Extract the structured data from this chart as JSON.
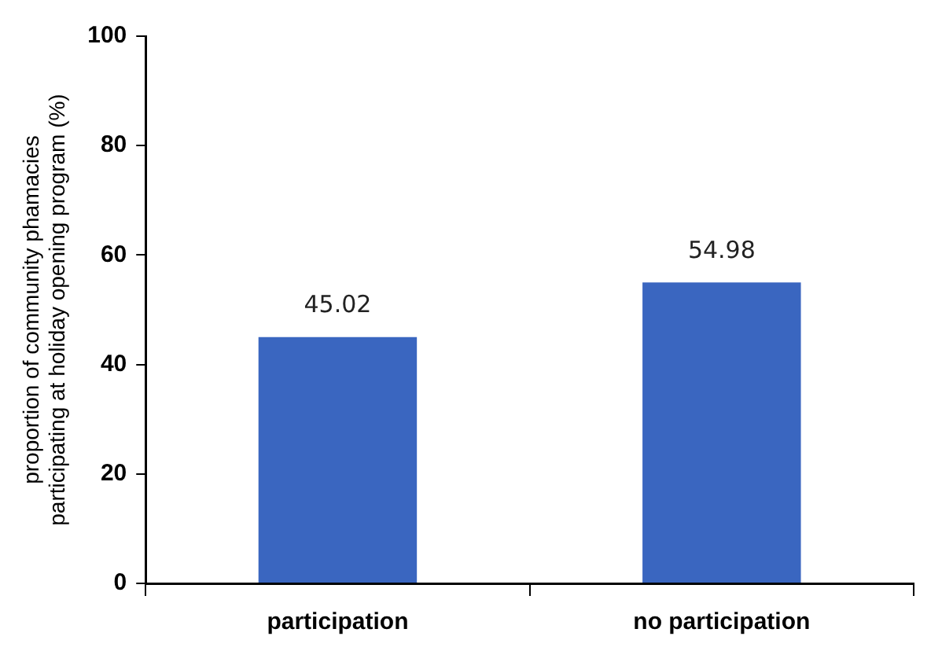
{
  "chart_data": {
    "type": "bar",
    "ylabel": "proportion of community phamacies participating at holiday opening program (%)",
    "categories": [
      "participation",
      "no participation"
    ],
    "values": [
      45.02,
      54.98
    ],
    "color": "#3a66c0",
    "ylim": [
      0,
      100
    ],
    "yticks": [
      0,
      20,
      40,
      60,
      80,
      100
    ],
    "grid": false,
    "legend": false,
    "data_labels": true
  }
}
